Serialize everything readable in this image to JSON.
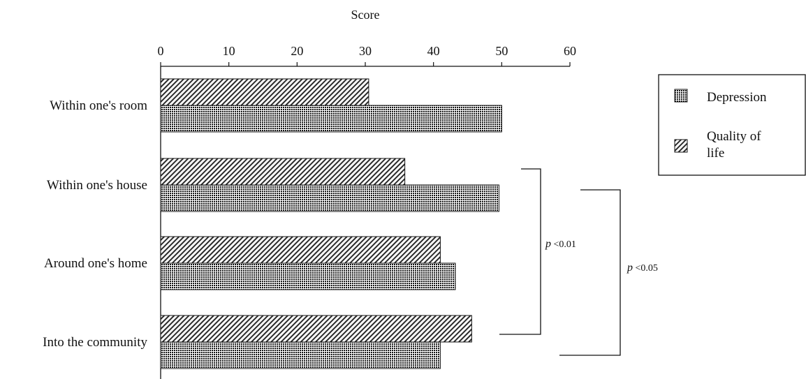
{
  "chart_data": {
    "type": "bar",
    "orientation": "horizontal",
    "title": "",
    "xlabel": "Score",
    "ylabel": "",
    "xlim": [
      0,
      60
    ],
    "ticks": [
      0,
      10,
      20,
      30,
      40,
      50,
      60
    ],
    "tick_labels": [
      "0",
      "10",
      "20",
      "30",
      "40",
      "50",
      "60"
    ],
    "grid": false,
    "legend_position": "right",
    "categories": [
      "Within one's room",
      "Within one's house",
      "Around one's home",
      "Into the community"
    ],
    "series": [
      {
        "name": "Quality of life",
        "pattern": "diagonal-hatch",
        "values": [
          30.5,
          35.8,
          41.0,
          45.6
        ]
      },
      {
        "name": "Depression",
        "pattern": "dense-grid",
        "color": "#1a1a1a",
        "values": [
          50.0,
          49.6,
          43.2,
          41.0
        ]
      }
    ],
    "legend": [
      {
        "label": "Depression",
        "pattern": "dense-grid"
      },
      {
        "label": "Quality of life",
        "pattern": "diagonal-hatch"
      }
    ],
    "annotations": [
      {
        "italic": "p",
        "text": " <0.01",
        "spans": [
          "Within one's house",
          "Into the community"
        ]
      },
      {
        "italic": "p",
        "text": " <0.05",
        "spans": [
          "Within one's house",
          "Into the community"
        ]
      }
    ]
  }
}
